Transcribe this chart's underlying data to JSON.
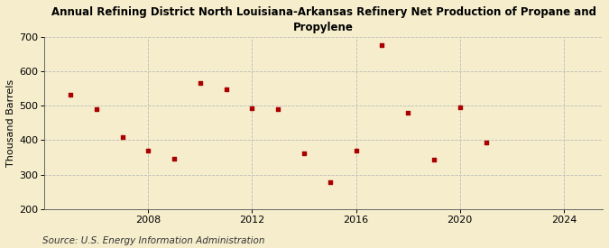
{
  "title": "Annual Refining District North Louisiana-Arkansas Refinery Net Production of Propane and\nPropylene",
  "ylabel": "Thousand Barrels",
  "source": "Source: U.S. Energy Information Administration",
  "background_color": "#f5edcc",
  "marker_color": "#aa0000",
  "years": [
    2005,
    2006,
    2007,
    2008,
    2009,
    2010,
    2011,
    2012,
    2013,
    2014,
    2015,
    2016,
    2017,
    2018,
    2019,
    2020,
    2021
  ],
  "values": [
    533,
    490,
    410,
    370,
    347,
    567,
    547,
    492,
    490,
    363,
    278,
    370,
    677,
    480,
    343,
    495,
    393
  ],
  "ylim": [
    200,
    700
  ],
  "yticks": [
    200,
    300,
    400,
    500,
    600,
    700
  ],
  "xlim": [
    2004.0,
    2025.5
  ],
  "xticks": [
    2008,
    2012,
    2016,
    2020,
    2024
  ],
  "grid_color": "#bbbbbb",
  "title_fontsize": 8.5,
  "axis_fontsize": 8,
  "source_fontsize": 7.5
}
